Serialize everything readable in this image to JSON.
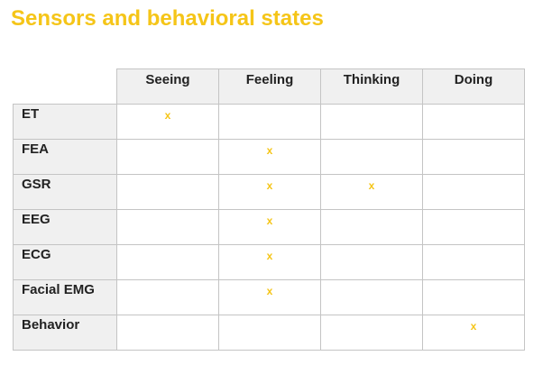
{
  "title": "Sensors and behavioral states",
  "columns": [
    "Seeing",
    "Feeling",
    "Thinking",
    "Doing"
  ],
  "mark_symbol": "x",
  "accent_color": "#f5c518",
  "rows": [
    {
      "label": "ET",
      "marks": [
        true,
        false,
        false,
        false
      ]
    },
    {
      "label": "FEA",
      "marks": [
        false,
        true,
        false,
        false
      ]
    },
    {
      "label": "GSR",
      "marks": [
        false,
        true,
        true,
        false
      ]
    },
    {
      "label": "EEG",
      "marks": [
        false,
        true,
        false,
        false
      ]
    },
    {
      "label": "ECG",
      "marks": [
        false,
        true,
        false,
        false
      ]
    },
    {
      "label": "Facial EMG",
      "marks": [
        false,
        true,
        false,
        false
      ]
    },
    {
      "label": "Behavior",
      "marks": [
        false,
        false,
        false,
        true
      ]
    }
  ]
}
